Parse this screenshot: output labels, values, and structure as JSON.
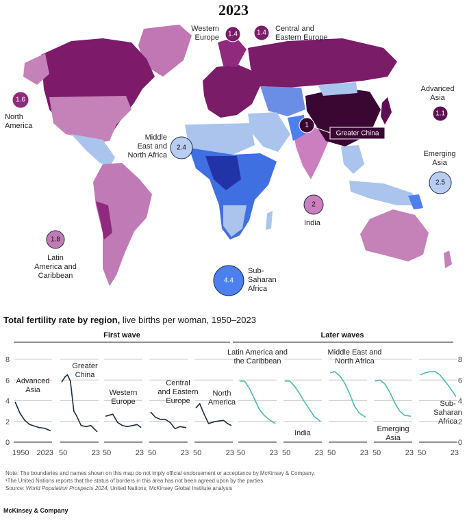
{
  "map": {
    "title": "2023",
    "regions": [
      {
        "id": "western-europe",
        "lines": [
          "Western",
          "Europe"
        ],
        "value": 1.4,
        "color": "#7a1c67",
        "text_color": "#ffffff"
      },
      {
        "id": "central-eastern-europe",
        "lines": [
          "Central and",
          "Eastern Europe"
        ],
        "value": 1.4,
        "color": "#7a1c67",
        "text_color": "#ffffff"
      },
      {
        "id": "north-america",
        "lines": [
          "North",
          "America"
        ],
        "value": 1.6,
        "color": "#8f2a7c",
        "text_color": "#ffffff"
      },
      {
        "id": "advanced-asia",
        "lines": [
          "Advanced",
          "Asia"
        ],
        "value": 1.1,
        "color": "#5e0f52",
        "text_color": "#ffffff"
      },
      {
        "id": "greater-china",
        "lines": [
          "Greater China"
        ],
        "value": 1.0,
        "color": "#3a0632",
        "text_color": "#ffffff"
      },
      {
        "id": "middle-east-north-africa",
        "lines": [
          "Middle",
          "East and",
          "North Africa"
        ],
        "value": 2.4,
        "color": "#b9cdf2",
        "text_color": "#111111"
      },
      {
        "id": "emerging-asia",
        "lines": [
          "Emerging",
          "Asia"
        ],
        "value": 2.5,
        "color": "#b9cdf2",
        "text_color": "#111111"
      },
      {
        "id": "india",
        "lines": [
          "India"
        ],
        "value": 2.0,
        "color": "#cc7fbf",
        "text_color": "#111111"
      },
      {
        "id": "latin-america-caribbean",
        "lines": [
          "Latin",
          "America and",
          "Caribbean"
        ],
        "value": 1.8,
        "color": "#c07ab6",
        "text_color": "#111111"
      },
      {
        "id": "sub-saharan-africa",
        "lines": [
          "Sub-",
          "Saharan",
          "Africa"
        ],
        "value": 4.4,
        "color": "#4d7ff0",
        "text_color": "#ffffff"
      }
    ]
  },
  "chart": {
    "title_bold": "Total fertility rate by region,",
    "title_rest": " live births per woman, 1950–2023",
    "groups": {
      "first": "First wave",
      "later": "Later waves"
    }
  },
  "chart_data": {
    "type": "line",
    "title": "Total fertility rate by region",
    "ylabel": "live births per woman",
    "yticks": [
      0,
      2,
      4,
      6,
      8
    ],
    "ylim": [
      0,
      8
    ],
    "xlim": [
      1950,
      2023
    ],
    "series": [
      {
        "name": "Advanced Asia",
        "label_lines": [
          "Advanced",
          "Asia"
        ],
        "group": "first",
        "color": "#1b2a3a",
        "x_ticks": [
          "1950",
          "2023"
        ],
        "points": [
          [
            1950,
            3.9
          ],
          [
            1960,
            2.8
          ],
          [
            1970,
            2.1
          ],
          [
            1980,
            1.7
          ],
          [
            1990,
            1.55
          ],
          [
            2000,
            1.4
          ],
          [
            2010,
            1.35
          ],
          [
            2023,
            1.1
          ]
        ]
      },
      {
        "name": "Greater China",
        "label_lines": [
          "Greater",
          "China"
        ],
        "group": "first",
        "color": "#1b2a3a",
        "x_ticks": [
          "50",
          "23"
        ],
        "points": [
          [
            1950,
            5.8
          ],
          [
            1957,
            6.3
          ],
          [
            1962,
            6.5
          ],
          [
            1968,
            5.9
          ],
          [
            1975,
            3.0
          ],
          [
            1980,
            2.6
          ],
          [
            1990,
            1.6
          ],
          [
            2000,
            1.5
          ],
          [
            2010,
            1.6
          ],
          [
            2023,
            1.0
          ]
        ]
      },
      {
        "name": "Western Europe",
        "label_lines": [
          "Western",
          "Europe"
        ],
        "group": "first",
        "color": "#1b2a3a",
        "x_ticks": [
          "50",
          "23"
        ],
        "points": [
          [
            1950,
            2.5
          ],
          [
            1965,
            2.7
          ],
          [
            1975,
            1.9
          ],
          [
            1985,
            1.6
          ],
          [
            1995,
            1.5
          ],
          [
            2005,
            1.6
          ],
          [
            2015,
            1.7
          ],
          [
            2023,
            1.4
          ]
        ]
      },
      {
        "name": "Central and Eastern Europe",
        "label_lines": [
          "Central",
          "and Eastern",
          "Europe"
        ],
        "group": "first",
        "color": "#1b2a3a",
        "x_ticks": [
          "50",
          "23"
        ],
        "points": [
          [
            1950,
            2.9
          ],
          [
            1960,
            2.4
          ],
          [
            1970,
            2.2
          ],
          [
            1980,
            2.2
          ],
          [
            1990,
            1.9
          ],
          [
            2000,
            1.3
          ],
          [
            2010,
            1.5
          ],
          [
            2023,
            1.4
          ]
        ]
      },
      {
        "name": "North America",
        "label_lines": [
          "North",
          "America"
        ],
        "group": "first",
        "color": "#1b2a3a",
        "x_ticks": [
          "50",
          "23"
        ],
        "points": [
          [
            1950,
            3.3
          ],
          [
            1958,
            3.7
          ],
          [
            1965,
            2.9
          ],
          [
            1976,
            1.8
          ],
          [
            1990,
            2.0
          ],
          [
            2007,
            2.1
          ],
          [
            2015,
            1.8
          ],
          [
            2023,
            1.6
          ]
        ]
      },
      {
        "name": "Latin America and the Caribbean",
        "label_lines": [
          "Latin America and",
          "the Caribbean"
        ],
        "group": "later",
        "color": "#4fb8b0",
        "x_ticks": [
          "50",
          "23"
        ],
        "points": [
          [
            1950,
            5.9
          ],
          [
            1960,
            5.9
          ],
          [
            1970,
            5.2
          ],
          [
            1980,
            4.2
          ],
          [
            1990,
            3.2
          ],
          [
            2000,
            2.6
          ],
          [
            2010,
            2.2
          ],
          [
            2023,
            1.8
          ]
        ]
      },
      {
        "name": "India",
        "label_lines": [
          "India"
        ],
        "group": "later",
        "color": "#4fb8b0",
        "x_ticks": [
          "50",
          "23"
        ],
        "points": [
          [
            1950,
            5.9
          ],
          [
            1960,
            5.9
          ],
          [
            1970,
            5.4
          ],
          [
            1980,
            4.7
          ],
          [
            1990,
            3.9
          ],
          [
            2000,
            3.2
          ],
          [
            2010,
            2.5
          ],
          [
            2023,
            2.0
          ]
        ]
      },
      {
        "name": "Middle East and North Africa",
        "label_lines": [
          "Middle East and",
          "North Africa"
        ],
        "group": "later",
        "color": "#4fb8b0",
        "x_ticks": [
          "50",
          "23"
        ],
        "points": [
          [
            1950,
            6.7
          ],
          [
            1960,
            6.8
          ],
          [
            1970,
            6.4
          ],
          [
            1980,
            5.7
          ],
          [
            1990,
            4.7
          ],
          [
            2000,
            3.5
          ],
          [
            2010,
            2.8
          ],
          [
            2023,
            2.4
          ]
        ]
      },
      {
        "name": "Emerging Asia",
        "label_lines": [
          "Emerging",
          "Asia"
        ],
        "group": "later",
        "color": "#4fb8b0",
        "x_ticks": [
          "50",
          "23"
        ],
        "points": [
          [
            1950,
            5.9
          ],
          [
            1960,
            6.0
          ],
          [
            1970,
            5.6
          ],
          [
            1980,
            4.8
          ],
          [
            1990,
            3.8
          ],
          [
            2000,
            3.0
          ],
          [
            2010,
            2.6
          ],
          [
            2023,
            2.5
          ]
        ]
      },
      {
        "name": "Sub-Saharan Africa",
        "label_lines": [
          "Sub-",
          "Saharan",
          "Africa"
        ],
        "group": "later",
        "color": "#4fb8b0",
        "x_ticks": [
          "50",
          "23"
        ],
        "points": [
          [
            1950,
            6.5
          ],
          [
            1960,
            6.7
          ],
          [
            1970,
            6.8
          ],
          [
            1980,
            6.8
          ],
          [
            1990,
            6.5
          ],
          [
            2000,
            5.9
          ],
          [
            2010,
            5.3
          ],
          [
            2023,
            4.4
          ]
        ]
      }
    ]
  },
  "notes": {
    "line1": "Note: The boundaries and names shown on this map do not imply official endorsement or acceptance by McKinsey & Company.",
    "line2": "¹The United Nations reports that the status of borders in this area has not been agreed upon by the parties.",
    "line3_prefix": "Source: ",
    "line3_italic": "World Population Prospects 2024",
    "line3_rest": ", United Nations; McKinsey Global Institute analysis"
  },
  "brand": "McKinsey & Company"
}
